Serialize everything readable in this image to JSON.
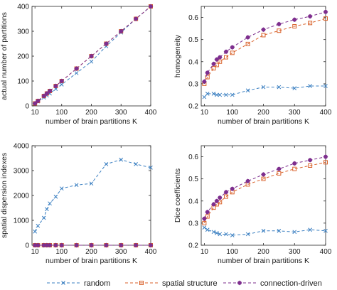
{
  "legend": {
    "entries": [
      {
        "label": "random",
        "color": "#3a7fc1",
        "marker": "x"
      },
      {
        "label": "spatial structure",
        "color": "#d9622b",
        "marker": "square"
      },
      {
        "label": "connection-driven",
        "color": "#7e2f8e",
        "marker": "asterisk"
      }
    ]
  },
  "chart_data": [
    {
      "type": "line",
      "xlabel": "number of brain partitions K",
      "ylabel": "actual number of partitions",
      "xlim": [
        0,
        400
      ],
      "ylim": [
        0,
        400
      ],
      "xticks": [
        10,
        100,
        200,
        300,
        400
      ],
      "yticks": [
        0,
        100,
        200,
        300,
        400
      ],
      "grid": false,
      "x": [
        10,
        20,
        40,
        50,
        60,
        80,
        100,
        150,
        200,
        250,
        300,
        350,
        400
      ],
      "series": [
        {
          "name": "random",
          "values": [
            10,
            18,
            34,
            42,
            50,
            68,
            86,
            132,
            178,
            240,
            295,
            350,
            400
          ]
        },
        {
          "name": "spatial structure",
          "values": [
            10,
            20,
            40,
            50,
            60,
            80,
            100,
            150,
            200,
            250,
            300,
            350,
            400
          ]
        },
        {
          "name": "connection-driven",
          "values": [
            10,
            20,
            40,
            50,
            60,
            80,
            100,
            150,
            200,
            250,
            300,
            350,
            400
          ]
        }
      ]
    },
    {
      "type": "line",
      "xlabel": "number of brain partitions K",
      "ylabel": "homogeneity",
      "xlim": [
        0,
        400
      ],
      "ylim": [
        0.2,
        0.65
      ],
      "xticks": [
        10,
        100,
        200,
        300,
        400
      ],
      "yticks": [
        0.2,
        0.3,
        0.4,
        0.5,
        0.6
      ],
      "grid": false,
      "x": [
        10,
        20,
        40,
        50,
        60,
        80,
        100,
        150,
        200,
        250,
        300,
        350,
        400
      ],
      "series": [
        {
          "name": "random",
          "values": [
            0.24,
            0.255,
            0.255,
            0.25,
            0.25,
            0.25,
            0.25,
            0.27,
            0.285,
            0.285,
            0.28,
            0.29,
            0.29
          ]
        },
        {
          "name": "spatial structure",
          "values": [
            0.3,
            0.33,
            0.37,
            0.385,
            0.4,
            0.42,
            0.44,
            0.48,
            0.52,
            0.54,
            0.56,
            0.575,
            0.595
          ]
        },
        {
          "name": "connection-driven",
          "values": [
            0.31,
            0.35,
            0.39,
            0.41,
            0.42,
            0.445,
            0.465,
            0.51,
            0.545,
            0.57,
            0.59,
            0.605,
            0.625
          ]
        }
      ]
    },
    {
      "type": "line",
      "xlabel": "number of brain partitions K",
      "ylabel": "spatial dispersion indexes",
      "xlim": [
        0,
        400
      ],
      "ylim": [
        0,
        4000
      ],
      "xticks": [
        10,
        100,
        200,
        300,
        400
      ],
      "yticks": [
        0,
        1000,
        2000,
        3000,
        4000
      ],
      "grid": false,
      "x": [
        10,
        20,
        40,
        50,
        60,
        80,
        100,
        150,
        200,
        250,
        300,
        350,
        400
      ],
      "series": [
        {
          "name": "random",
          "values": [
            550,
            780,
            1100,
            1450,
            1680,
            1950,
            2280,
            2420,
            2480,
            3260,
            3440,
            3260,
            3120
          ]
        },
        {
          "name": "spatial structure",
          "values": [
            0,
            0,
            0,
            0,
            0,
            0,
            0,
            0,
            0,
            0,
            0,
            0,
            0
          ]
        },
        {
          "name": "connection-driven",
          "values": [
            0,
            0,
            0,
            0,
            0,
            0,
            0,
            0,
            0,
            0,
            0,
            0,
            0
          ]
        }
      ]
    },
    {
      "type": "line",
      "xlabel": "number of brain partitions K",
      "ylabel": "Dice coefficients",
      "xlim": [
        0,
        400
      ],
      "ylim": [
        0.2,
        0.65
      ],
      "xticks": [
        10,
        100,
        200,
        300,
        400
      ],
      "yticks": [
        0.2,
        0.3,
        0.4,
        0.5,
        0.6
      ],
      "grid": false,
      "x": [
        10,
        20,
        40,
        50,
        60,
        80,
        100,
        150,
        200,
        250,
        300,
        350,
        400
      ],
      "series": [
        {
          "name": "random",
          "values": [
            0.28,
            0.27,
            0.26,
            0.255,
            0.25,
            0.25,
            0.245,
            0.25,
            0.265,
            0.265,
            0.26,
            0.27,
            0.265
          ]
        },
        {
          "name": "spatial structure",
          "values": [
            0.3,
            0.33,
            0.37,
            0.385,
            0.395,
            0.42,
            0.44,
            0.475,
            0.5,
            0.525,
            0.545,
            0.56,
            0.575
          ]
        },
        {
          "name": "connection-driven",
          "values": [
            0.32,
            0.35,
            0.385,
            0.4,
            0.415,
            0.44,
            0.455,
            0.49,
            0.52,
            0.545,
            0.57,
            0.585,
            0.6
          ]
        }
      ]
    }
  ]
}
